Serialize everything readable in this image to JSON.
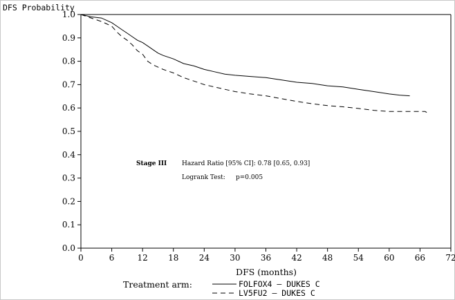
{
  "chart_data": {
    "type": "line",
    "ylabel": "DFS Probability",
    "xlabel": "DFS (months)",
    "xlim": [
      0,
      72
    ],
    "ylim": [
      0.0,
      1.0
    ],
    "xticks": [
      "0",
      "6",
      "12",
      "18",
      "24",
      "30",
      "36",
      "42",
      "48",
      "54",
      "60",
      "66",
      "72"
    ],
    "yticks": [
      "0.0",
      "0.1",
      "0.2",
      "0.3",
      "0.4",
      "0.5",
      "0.6",
      "0.7",
      "0.8",
      "0.9",
      "1.0"
    ],
    "annotations": {
      "stage": "Stage III",
      "hazard": "Hazard Ratio [95% CI]: 0.78 [0.65, 0.93]",
      "logrank_label": "Logrank Test:",
      "logrank_value": "p=0.005"
    },
    "legend": {
      "title": "Treatment arm:",
      "placement": "bottom"
    },
    "series": [
      {
        "name": "FOLFOX4 – DUKES C",
        "style": "solid",
        "x": [
          0,
          2,
          4,
          5,
          6,
          7,
          8,
          9,
          10,
          11,
          12,
          13,
          14,
          15,
          16,
          18,
          20,
          22,
          24,
          26,
          28,
          30,
          33,
          36,
          39,
          42,
          45,
          48,
          51,
          54,
          57,
          60,
          62,
          64
        ],
        "y": [
          1.0,
          0.99,
          0.985,
          0.975,
          0.965,
          0.95,
          0.935,
          0.92,
          0.905,
          0.89,
          0.88,
          0.865,
          0.85,
          0.835,
          0.825,
          0.81,
          0.79,
          0.78,
          0.765,
          0.755,
          0.745,
          0.74,
          0.735,
          0.73,
          0.72,
          0.71,
          0.705,
          0.695,
          0.69,
          0.68,
          0.67,
          0.66,
          0.655,
          0.652
        ]
      },
      {
        "name": "LV5FU2 – DUKES C",
        "style": "dashed",
        "x": [
          0,
          2,
          4,
          5,
          6,
          7,
          8,
          9,
          10,
          11,
          12,
          13,
          14,
          15,
          16,
          18,
          20,
          22,
          24,
          26,
          28,
          30,
          33,
          36,
          39,
          42,
          45,
          48,
          51,
          54,
          57,
          60,
          63,
          66,
          67,
          67.5
        ],
        "y": [
          1.0,
          0.985,
          0.97,
          0.96,
          0.95,
          0.925,
          0.905,
          0.89,
          0.87,
          0.845,
          0.83,
          0.8,
          0.785,
          0.775,
          0.765,
          0.75,
          0.73,
          0.715,
          0.7,
          0.69,
          0.68,
          0.67,
          0.66,
          0.652,
          0.64,
          0.628,
          0.618,
          0.61,
          0.605,
          0.598,
          0.59,
          0.585,
          0.585,
          0.585,
          0.585,
          0.578
        ]
      }
    ]
  }
}
